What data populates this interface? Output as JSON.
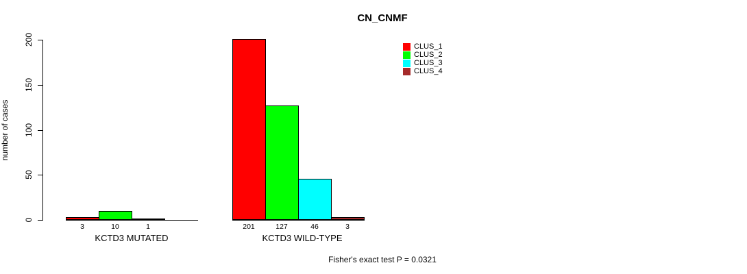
{
  "chart_data": {
    "type": "bar",
    "title": "CN_CNMF",
    "ylabel": "number of cases",
    "ylim": [
      0,
      200
    ],
    "yticks": [
      0,
      50,
      100,
      150,
      200
    ],
    "grid": false,
    "legend_position": "top-right",
    "legend": [
      {
        "name": "CLUS_1",
        "color": "#FF0000"
      },
      {
        "name": "CLUS_2",
        "color": "#00FF00"
      },
      {
        "name": "CLUS_3",
        "color": "#00FFFF"
      },
      {
        "name": "CLUS_4",
        "color": "#A52A2A"
      }
    ],
    "groups": [
      {
        "label": "KCTD3 MUTATED",
        "values": [
          3,
          10,
          1,
          0
        ],
        "value_labels": [
          "3",
          "10",
          "1",
          ""
        ]
      },
      {
        "label": "KCTD3 WILD-TYPE",
        "values": [
          201,
          127,
          46,
          3
        ],
        "value_labels": [
          "201",
          "127",
          "46",
          "3"
        ]
      }
    ],
    "annotation": "Fisher's exact test P = 0.0321"
  }
}
